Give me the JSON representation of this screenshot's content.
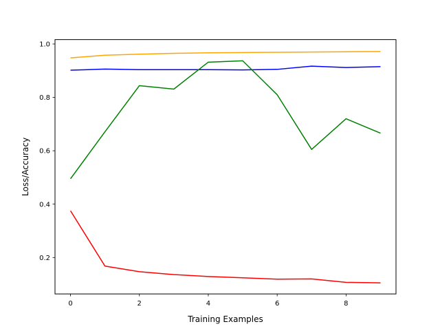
{
  "chart_data": {
    "type": "line",
    "xlabel": "Training Examples",
    "ylabel": "Loss/Accuracy",
    "xlim": [
      -0.45,
      9.45
    ],
    "ylim": [
      0.0636,
      1.0164
    ],
    "x_ticks": [
      0,
      2,
      4,
      6,
      8
    ],
    "y_ticks": [
      0.2,
      0.4,
      0.6,
      0.8,
      1.0
    ],
    "x_tick_labels": [
      "0",
      "2",
      "4",
      "6",
      "8"
    ],
    "y_tick_labels": [
      "0.2",
      "0.4",
      "0.6",
      "0.8",
      "1.0"
    ],
    "grid": false,
    "x": [
      0,
      1,
      2,
      3,
      4,
      5,
      6,
      7,
      8,
      9
    ],
    "series": [
      {
        "color": "#ffa500",
        "values": [
          0.948,
          0.958,
          0.962,
          0.965,
          0.967,
          0.968,
          0.969,
          0.97,
          0.971,
          0.972
        ]
      },
      {
        "color": "#0000ff",
        "values": [
          0.902,
          0.906,
          0.904,
          0.904,
          0.904,
          0.903,
          0.905,
          0.917,
          0.912,
          0.915
        ]
      },
      {
        "color": "#008000",
        "values": [
          0.495,
          0.671,
          0.844,
          0.831,
          0.932,
          0.937,
          0.81,
          0.605,
          0.72,
          0.666
        ]
      },
      {
        "color": "#ff0000",
        "values": [
          0.375,
          0.168,
          0.147,
          0.136,
          0.129,
          0.124,
          0.119,
          0.12,
          0.107,
          0.105
        ]
      }
    ]
  }
}
